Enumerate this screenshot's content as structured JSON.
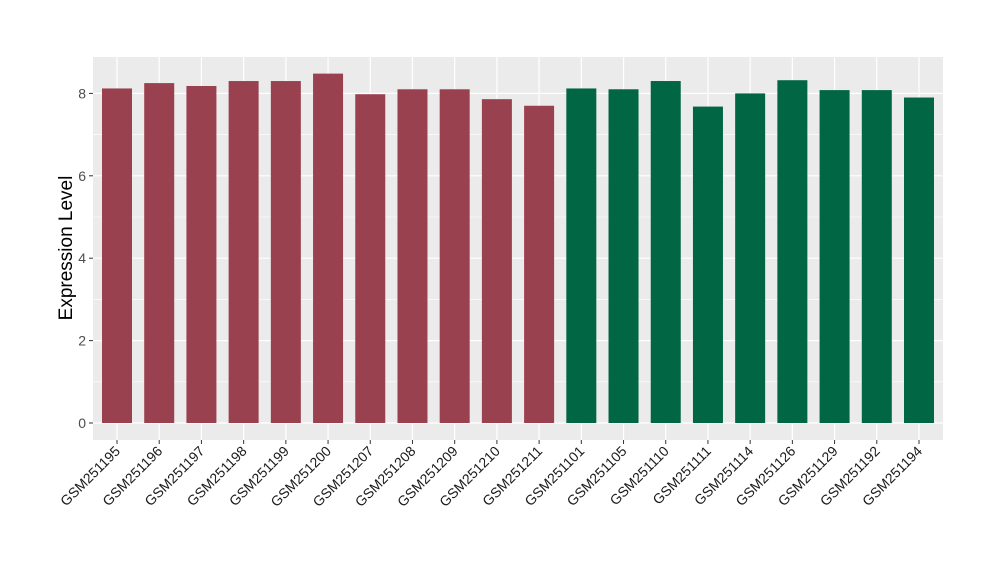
{
  "chart_data": {
    "type": "bar",
    "title": "",
    "xlabel": "",
    "ylabel": "Expression Level",
    "ylim": [
      0,
      8.9
    ],
    "yticks": [
      0,
      2,
      4,
      6,
      8
    ],
    "grid": true,
    "legend": "none",
    "categories": [
      "GSM251195",
      "GSM251196",
      "GSM251197",
      "GSM251198",
      "GSM251199",
      "GSM251200",
      "GSM251207",
      "GSM251208",
      "GSM251209",
      "GSM251210",
      "GSM251211",
      "GSM251101",
      "GSM251105",
      "GSM251110",
      "GSM251111",
      "GSM251114",
      "GSM251126",
      "GSM251129",
      "GSM251192",
      "GSM251194"
    ],
    "values": [
      8.12,
      8.25,
      8.18,
      8.3,
      8.3,
      8.48,
      7.98,
      8.1,
      8.1,
      7.86,
      7.7,
      8.12,
      8.1,
      8.3,
      7.68,
      8.0,
      8.32,
      8.08,
      8.08,
      7.9
    ],
    "groups": [
      0,
      0,
      0,
      0,
      0,
      0,
      0,
      0,
      0,
      0,
      0,
      1,
      1,
      1,
      1,
      1,
      1,
      1,
      1,
      1
    ],
    "group_colors": [
      "#9a4150",
      "#006644"
    ],
    "panel_background": "#ebebeb",
    "grid_color": "#ffffff"
  }
}
